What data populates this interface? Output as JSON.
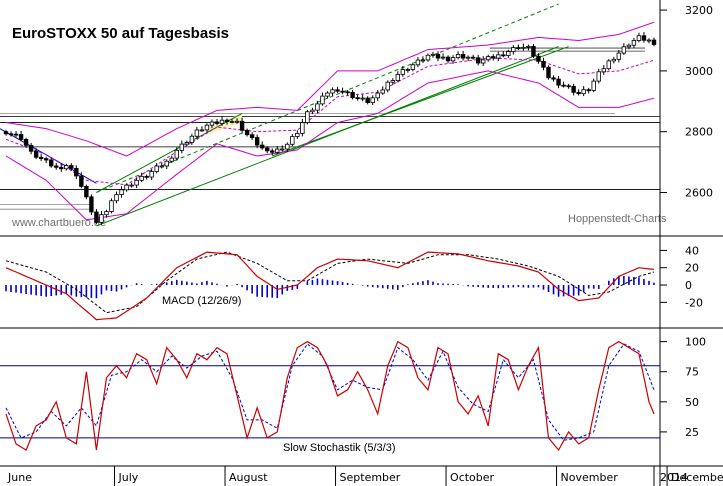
{
  "chart_data": [
    {
      "type": "candlestick",
      "title": "EuroSTOXX 50 auf Tagesbasis",
      "watermark_left": "www.chartbuero.de",
      "watermark_right": "Hoppenstedt-Charts",
      "ylim": [
        2470,
        3220
      ],
      "y_ticks": [
        2600,
        2800,
        3000,
        3200
      ],
      "horizontal_levels": [
        2850,
        2830,
        2750,
        2610
      ],
      "grid": false,
      "keypoints": [
        [
          0,
          2800
        ],
        [
          3,
          2780
        ],
        [
          5,
          2730
        ],
        [
          8,
          2700
        ],
        [
          10,
          2680
        ],
        [
          12,
          2690
        ],
        [
          14,
          2660
        ],
        [
          16,
          2580
        ],
        [
          18,
          2500
        ],
        [
          20,
          2540
        ],
        [
          22,
          2600
        ],
        [
          24,
          2620
        ],
        [
          26,
          2640
        ],
        [
          28,
          2655
        ],
        [
          30,
          2680
        ],
        [
          32,
          2700
        ],
        [
          34,
          2740
        ],
        [
          36,
          2770
        ],
        [
          38,
          2800
        ],
        [
          40,
          2820
        ],
        [
          42,
          2830
        ],
        [
          44,
          2840
        ],
        [
          46,
          2830
        ],
        [
          48,
          2790
        ],
        [
          50,
          2760
        ],
        [
          52,
          2730
        ],
        [
          54,
          2740
        ],
        [
          56,
          2760
        ],
        [
          58,
          2800
        ],
        [
          60,
          2860
        ],
        [
          62,
          2890
        ],
        [
          64,
          2930
        ],
        [
          66,
          2940
        ],
        [
          68,
          2925
        ],
        [
          70,
          2910
        ],
        [
          72,
          2900
        ],
        [
          74,
          2920
        ],
        [
          76,
          2960
        ],
        [
          78,
          2990
        ],
        [
          80,
          3010
        ],
        [
          82,
          3030
        ],
        [
          84,
          3050
        ],
        [
          86,
          3045
        ],
        [
          88,
          3040
        ],
        [
          90,
          3050
        ],
        [
          92,
          3045
        ],
        [
          94,
          3030
        ],
        [
          96,
          3040
        ],
        [
          98,
          3050
        ],
        [
          100,
          3065
        ],
        [
          102,
          3080
        ],
        [
          104,
          3075
        ],
        [
          106,
          3030
        ],
        [
          108,
          2980
        ],
        [
          110,
          2960
        ],
        [
          112,
          2945
        ],
        [
          114,
          2925
        ],
        [
          116,
          2940
        ],
        [
          118,
          2990
        ],
        [
          120,
          3030
        ],
        [
          122,
          3060
        ],
        [
          124,
          3090
        ],
        [
          126,
          3110
        ],
        [
          128,
          3100
        ],
        [
          129,
          3080
        ]
      ],
      "indicators": {
        "lower_band_keypoints": [
          [
            0,
            2720
          ],
          [
            8,
            2640
          ],
          [
            16,
            2510
          ],
          [
            24,
            2530
          ],
          [
            34,
            2660
          ],
          [
            42,
            2760
          ],
          [
            50,
            2720
          ],
          [
            58,
            2740
          ],
          [
            66,
            2830
          ],
          [
            74,
            2860
          ],
          [
            84,
            2960
          ],
          [
            96,
            3000
          ],
          [
            106,
            2960
          ],
          [
            114,
            2880
          ],
          [
            122,
            2880
          ],
          [
            129,
            2910
          ]
        ],
        "upper_band_keypoints": [
          [
            0,
            2830
          ],
          [
            8,
            2810
          ],
          [
            16,
            2770
          ],
          [
            24,
            2720
          ],
          [
            34,
            2810
          ],
          [
            42,
            2870
          ],
          [
            50,
            2880
          ],
          [
            58,
            2870
          ],
          [
            66,
            3000
          ],
          [
            74,
            3000
          ],
          [
            84,
            3070
          ],
          [
            96,
            3085
          ],
          [
            106,
            3110
          ],
          [
            114,
            3100
          ],
          [
            122,
            3120
          ],
          [
            129,
            3160
          ]
        ]
      }
    },
    {
      "type": "line",
      "title": "MACD (12/26/9)",
      "ylim": [
        -45,
        52
      ],
      "y_ticks": [
        40,
        20,
        0,
        -20
      ],
      "keypoints_macd": [
        [
          0,
          20
        ],
        [
          6,
          5
        ],
        [
          12,
          -10
        ],
        [
          18,
          -40
        ],
        [
          22,
          -38
        ],
        [
          28,
          -15
        ],
        [
          34,
          20
        ],
        [
          40,
          38
        ],
        [
          46,
          35
        ],
        [
          50,
          10
        ],
        [
          54,
          -5
        ],
        [
          58,
          0
        ],
        [
          62,
          20
        ],
        [
          66,
          30
        ],
        [
          72,
          28
        ],
        [
          78,
          20
        ],
        [
          84,
          38
        ],
        [
          90,
          36
        ],
        [
          96,
          28
        ],
        [
          102,
          22
        ],
        [
          106,
          15
        ],
        [
          110,
          -5
        ],
        [
          114,
          -18
        ],
        [
          118,
          -15
        ],
        [
          122,
          10
        ],
        [
          126,
          20
        ],
        [
          129,
          18
        ]
      ],
      "keypoints_signal": [
        [
          0,
          28
        ],
        [
          8,
          15
        ],
        [
          14,
          -5
        ],
        [
          20,
          -32
        ],
        [
          26,
          -25
        ],
        [
          32,
          5
        ],
        [
          38,
          30
        ],
        [
          44,
          38
        ],
        [
          50,
          25
        ],
        [
          56,
          5
        ],
        [
          60,
          5
        ],
        [
          66,
          25
        ],
        [
          72,
          30
        ],
        [
          80,
          25
        ],
        [
          86,
          35
        ],
        [
          92,
          35
        ],
        [
          98,
          30
        ],
        [
          104,
          22
        ],
        [
          110,
          10
        ],
        [
          116,
          -12
        ],
        [
          120,
          -8
        ],
        [
          126,
          10
        ],
        [
          129,
          15
        ]
      ]
    },
    {
      "type": "line",
      "title": "Slow Stochastik (5/3/3)",
      "ylim": [
        0,
        108
      ],
      "y_ticks": [
        100,
        75,
        50,
        25
      ],
      "levels": [
        80,
        20
      ],
      "keypoints_k": [
        [
          0,
          40
        ],
        [
          2,
          15
        ],
        [
          4,
          10
        ],
        [
          6,
          30
        ],
        [
          8,
          35
        ],
        [
          10,
          50
        ],
        [
          12,
          20
        ],
        [
          14,
          15
        ],
        [
          16,
          75
        ],
        [
          18,
          10
        ],
        [
          20,
          70
        ],
        [
          22,
          80
        ],
        [
          24,
          70
        ],
        [
          26,
          90
        ],
        [
          28,
          85
        ],
        [
          30,
          65
        ],
        [
          32,
          95
        ],
        [
          34,
          85
        ],
        [
          36,
          70
        ],
        [
          38,
          90
        ],
        [
          40,
          85
        ],
        [
          42,
          95
        ],
        [
          44,
          90
        ],
        [
          46,
          55
        ],
        [
          48,
          20
        ],
        [
          50,
          45
        ],
        [
          52,
          20
        ],
        [
          54,
          25
        ],
        [
          56,
          70
        ],
        [
          58,
          95
        ],
        [
          60,
          100
        ],
        [
          62,
          95
        ],
        [
          64,
          80
        ],
        [
          66,
          55
        ],
        [
          68,
          60
        ],
        [
          70,
          75
        ],
        [
          72,
          60
        ],
        [
          74,
          40
        ],
        [
          76,
          80
        ],
        [
          78,
          100
        ],
        [
          80,
          95
        ],
        [
          82,
          70
        ],
        [
          84,
          60
        ],
        [
          86,
          95
        ],
        [
          88,
          90
        ],
        [
          90,
          50
        ],
        [
          92,
          40
        ],
        [
          94,
          55
        ],
        [
          96,
          30
        ],
        [
          98,
          90
        ],
        [
          100,
          85
        ],
        [
          102,
          60
        ],
        [
          104,
          80
        ],
        [
          106,
          95
        ],
        [
          108,
          20
        ],
        [
          110,
          10
        ],
        [
          112,
          25
        ],
        [
          114,
          15
        ],
        [
          116,
          20
        ],
        [
          118,
          60
        ],
        [
          120,
          95
        ],
        [
          122,
          100
        ],
        [
          124,
          95
        ],
        [
          126,
          90
        ],
        [
          128,
          50
        ],
        [
          129,
          40
        ]
      ],
      "keypoints_d": [
        [
          0,
          45
        ],
        [
          3,
          20
        ],
        [
          6,
          25
        ],
        [
          9,
          42
        ],
        [
          12,
          30
        ],
        [
          15,
          45
        ],
        [
          18,
          30
        ],
        [
          21,
          72
        ],
        [
          24,
          75
        ],
        [
          27,
          85
        ],
        [
          30,
          75
        ],
        [
          33,
          88
        ],
        [
          36,
          78
        ],
        [
          39,
          88
        ],
        [
          42,
          92
        ],
        [
          45,
          70
        ],
        [
          48,
          35
        ],
        [
          51,
          35
        ],
        [
          54,
          28
        ],
        [
          57,
          80
        ],
        [
          60,
          98
        ],
        [
          63,
          88
        ],
        [
          66,
          60
        ],
        [
          69,
          68
        ],
        [
          72,
          62
        ],
        [
          75,
          60
        ],
        [
          78,
          95
        ],
        [
          81,
          85
        ],
        [
          84,
          68
        ],
        [
          87,
          92
        ],
        [
          90,
          62
        ],
        [
          93,
          48
        ],
        [
          96,
          42
        ],
        [
          99,
          85
        ],
        [
          102,
          70
        ],
        [
          105,
          85
        ],
        [
          108,
          35
        ],
        [
          111,
          18
        ],
        [
          114,
          20
        ],
        [
          117,
          25
        ],
        [
          120,
          80
        ],
        [
          123,
          98
        ],
        [
          126,
          92
        ],
        [
          129,
          60
        ]
      ]
    }
  ],
  "x_axis": {
    "months": [
      "June",
      "July",
      "August",
      "September",
      "October",
      "November",
      "December",
      "2014"
    ]
  },
  "colors": {
    "candle_up": "#ffffff",
    "candle_down": "#000000",
    "bollinger": "#cc00cc",
    "mid_line": "#cc00cc",
    "trend": "#008000",
    "macd": "#cc0000",
    "signal": "#000000",
    "histogram": "#0000cc",
    "stoch_k": "#cc0000",
    "stoch_d": "#0000cc",
    "levels": "#000080",
    "downtrend": "#0000cc",
    "highlight": "#f8f0c0"
  }
}
